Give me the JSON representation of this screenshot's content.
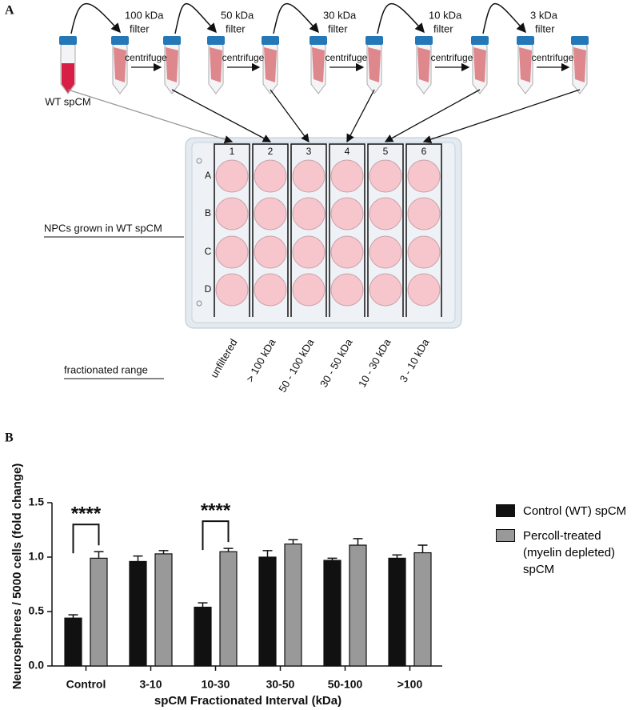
{
  "panel_a": {
    "label": "A",
    "source": "WT spCM",
    "filters": [
      {
        "size": "100 kDa",
        "word": "filter"
      },
      {
        "size": "50 kDa",
        "word": "filter"
      },
      {
        "size": "30 kDa",
        "word": "filter"
      },
      {
        "size": "10 kDa",
        "word": "filter"
      },
      {
        "size": "3 kDa",
        "word": "filter"
      }
    ],
    "centrifuge": [
      "centrifuge",
      "centrifuge",
      "centrifuge",
      "centrifuge",
      "centrifuge"
    ],
    "columns": [
      "1",
      "2",
      "3",
      "4",
      "5",
      "6"
    ],
    "rows": [
      "A",
      "B",
      "C",
      "D"
    ],
    "plate_caption": "NPCs grown in WT spCM",
    "range_caption": "fractionated range",
    "ranges": [
      "unfiltered",
      "> 100 kDa",
      "50 - 100 kDa",
      "30 - 50 kDa",
      "10 - 30 kDa",
      "3 - 10 kDa"
    ]
  },
  "panel_b": {
    "label": "B"
  },
  "chart_data": {
    "type": "bar",
    "y_label": "Neurospheres / 5000 cells (fold change)",
    "x_label": "spCM Fractionated Interval (kDa)",
    "categories": [
      "Control",
      "3-10",
      "10-30",
      "30-50",
      "50-100",
      ">100"
    ],
    "series": [
      {
        "name": "Control (WT) spCM",
        "color": "#111111",
        "values": [
          0.44,
          0.96,
          0.54,
          1.0,
          0.97,
          0.99
        ],
        "errors": [
          0.03,
          0.05,
          0.04,
          0.06,
          0.02,
          0.03
        ]
      },
      {
        "name": "Percoll-treated (myelin depleted) spCM",
        "color": "#999999",
        "values": [
          0.99,
          1.03,
          1.05,
          1.12,
          1.11,
          1.04
        ],
        "errors": [
          0.06,
          0.03,
          0.03,
          0.04,
          0.06,
          0.07
        ]
      }
    ],
    "ylim": [
      0,
      1.5
    ],
    "yticks": [
      {
        "value": 0,
        "label": "0.0"
      },
      0.5,
      {
        "value": 1,
        "label": "1.0"
      },
      1.5
    ],
    "annotations": [
      {
        "text": "****",
        "category": "Control"
      },
      {
        "text": "****",
        "category": "10-30"
      }
    ],
    "legend": "right"
  }
}
